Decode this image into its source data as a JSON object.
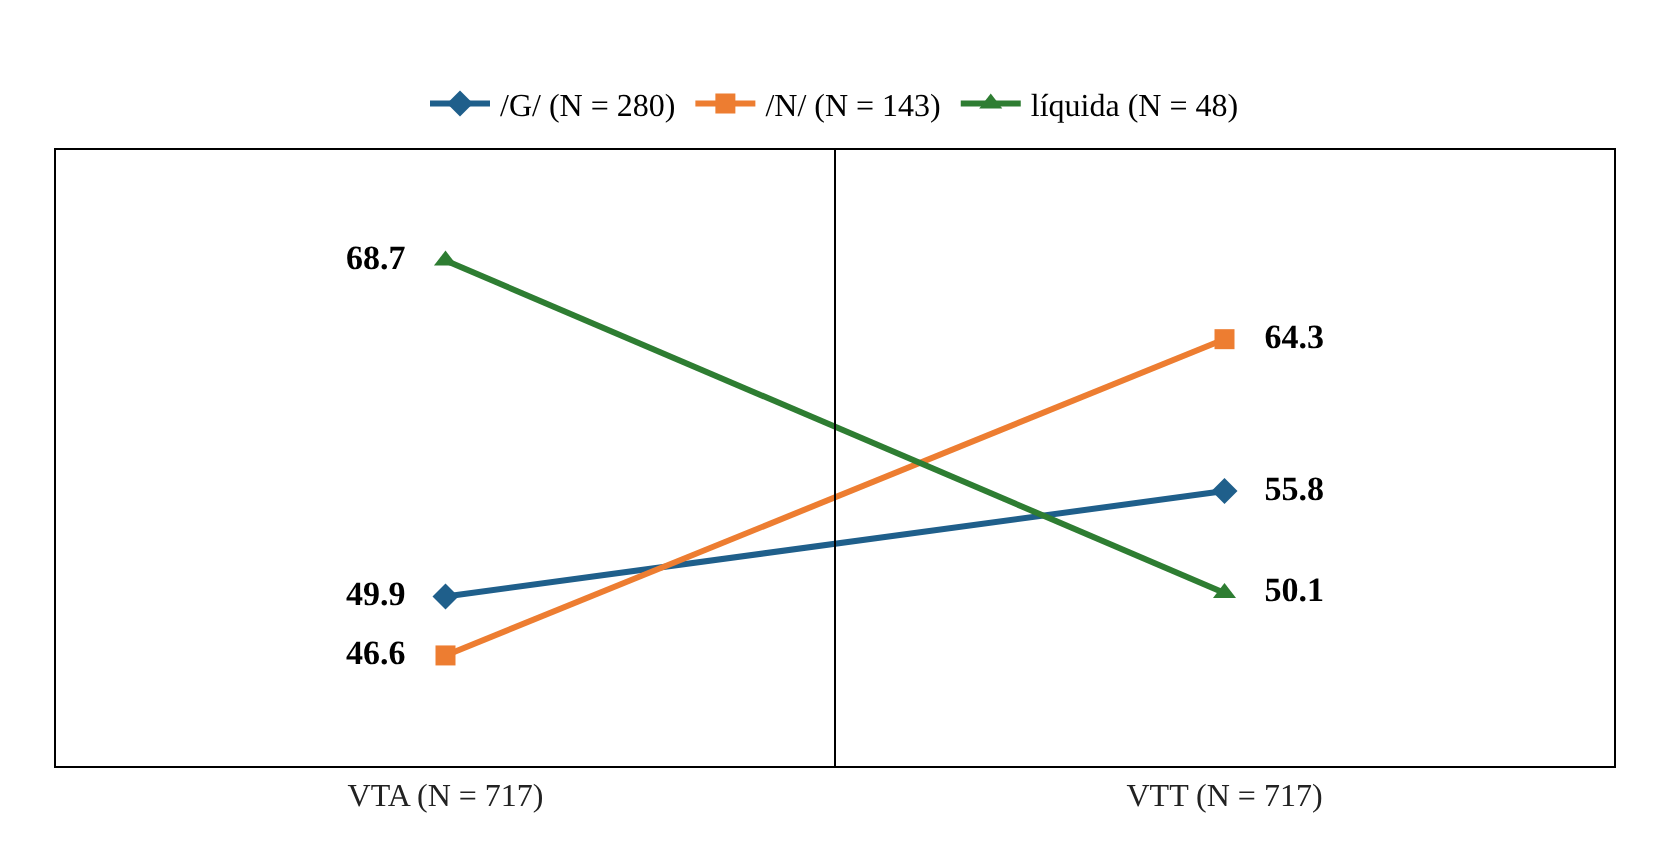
{
  "chart_data": {
    "type": "line",
    "categories": [
      "VTA (N = 717)",
      "VTT (N = 717)"
    ],
    "series": [
      {
        "name": "/G/ (N = 280)",
        "color": "#1f5f8b",
        "marker": "diamond",
        "values": [
          49.9,
          55.8
        ]
      },
      {
        "name": "/N/ (N = 143)",
        "color": "#ed7d31",
        "marker": "square",
        "values": [
          46.6,
          64.3
        ]
      },
      {
        "name": "líquida (N = 48)",
        "color": "#2e7d32",
        "marker": "triangle",
        "values": [
          68.7,
          50.1
        ]
      }
    ],
    "data_labels": true,
    "legend": "top",
    "line_style": "solid"
  }
}
